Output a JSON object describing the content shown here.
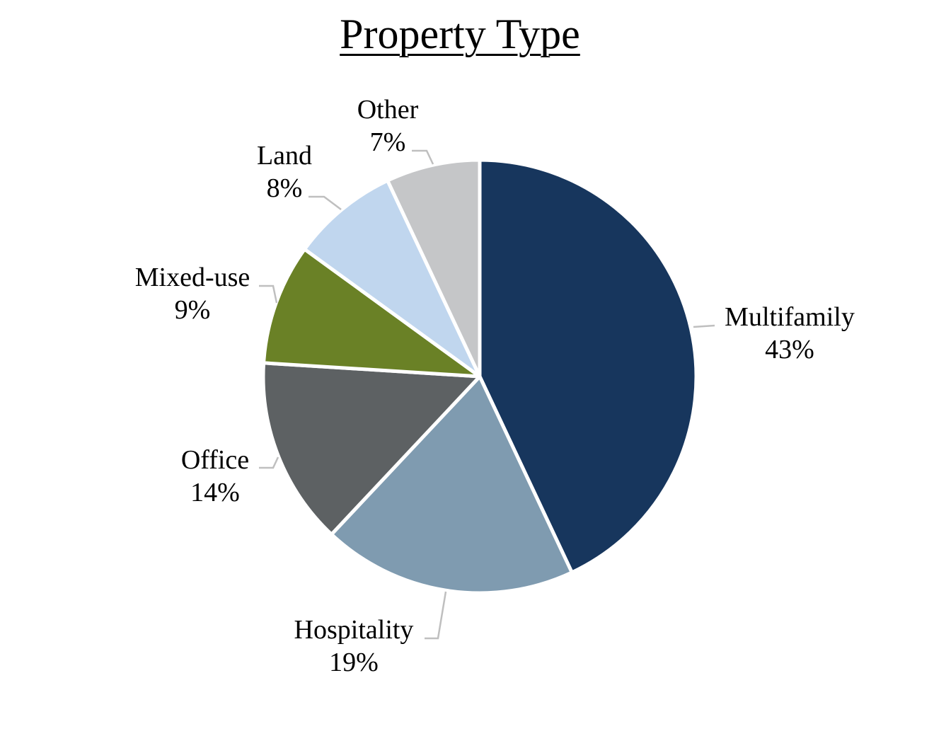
{
  "chart_data": {
    "type": "pie",
    "title": "Property Type",
    "slices": [
      {
        "label": "Multifamily",
        "value": 43,
        "display": "43%",
        "color": "#17365d"
      },
      {
        "label": "Hospitality",
        "value": 19,
        "display": "19%",
        "color": "#7f9bb0"
      },
      {
        "label": "Office",
        "value": 14,
        "display": "14%",
        "color": "#5d6163"
      },
      {
        "label": "Mixed-use",
        "value": 9,
        "display": "9%",
        "color": "#6a8126"
      },
      {
        "label": "Land",
        "value": 8,
        "display": "8%",
        "color": "#c0d6ee"
      },
      {
        "label": "Other",
        "value": 7,
        "display": "7%",
        "color": "#c5c6c8"
      }
    ],
    "leader_line_color": "#bfbfbf",
    "slice_border_color": "#ffffff"
  }
}
